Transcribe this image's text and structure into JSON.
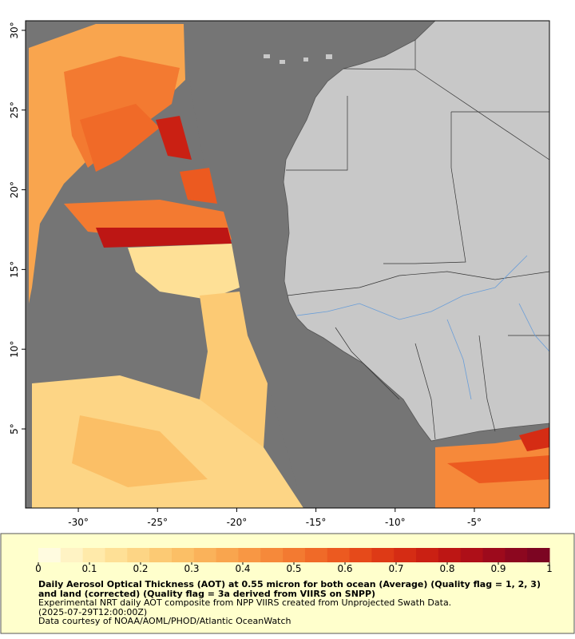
{
  "map": {
    "xlim": [
      -33.33,
      -0.26
    ],
    "ylim": [
      0.04,
      30.6
    ],
    "xticks": [
      {
        "value": -30,
        "label": "-30°"
      },
      {
        "value": -25,
        "label": "-25°"
      },
      {
        "value": -20,
        "label": "-20°"
      },
      {
        "value": -15,
        "label": "-15°"
      },
      {
        "value": -10,
        "label": "-10°"
      },
      {
        "value": -5,
        "label": "-5°"
      }
    ],
    "yticks": [
      {
        "value": 5,
        "label": "5°"
      },
      {
        "value": 10,
        "label": "10°"
      },
      {
        "value": 15,
        "label": "15°"
      },
      {
        "value": 20,
        "label": "20°"
      },
      {
        "value": 25,
        "label": "25°"
      },
      {
        "value": 30,
        "label": "30°"
      }
    ],
    "colorbar": {
      "lim": [
        0,
        1
      ],
      "ticks": [
        0,
        0.1,
        0.2,
        0.3,
        0.4,
        0.5,
        0.6,
        0.7,
        0.8,
        0.9,
        1
      ],
      "colors": [
        "#fffbe0",
        "#fff3c4",
        "#ffeaaa",
        "#fee096",
        "#fdd585",
        "#fcca74",
        "#fbbf66",
        "#fab25a",
        "#f9a54e",
        "#f89744",
        "#f6893a",
        "#f37a31",
        "#f06a28",
        "#ec5a20",
        "#e64a1a",
        "#de3a16",
        "#d52c14",
        "#ca2013",
        "#bd1614",
        "#ae0f18",
        "#9d0a1c",
        "#8c071f",
        "#7c0522"
      ]
    },
    "caption": {
      "title": "Daily Aerosol Optical Thickness (AOT) at 0.55 micron for both ocean (Average) (Quality flag = 1, 2, 3) and land (corrected) (Quality flag = 3a derived from VIIRS on SNPP)",
      "lines": [
        "Experimental NRT daily AOT composite from NPP VIIRS created from Unprojected Swath Data.",
        "(2025-07-29T12:00:00Z)",
        "Data courtesy of NOAA/AOML/PHOD/Atlantic OceanWatch"
      ]
    }
  }
}
